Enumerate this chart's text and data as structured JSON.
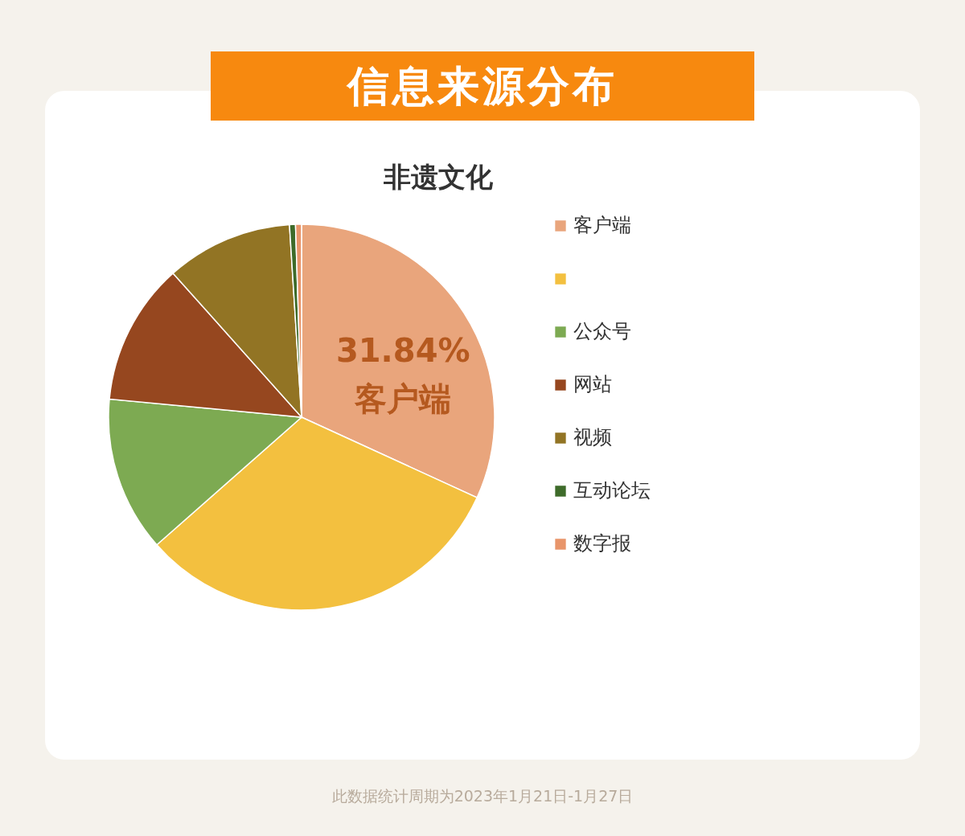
{
  "chart_data": {
    "type": "pie",
    "title": "信息来源分布",
    "subtitle": "非遗文化",
    "categories": [
      "客户端",
      null,
      "公众号",
      "网站",
      "视频",
      "互动论坛",
      "数字报"
    ],
    "values": [
      31.84,
      31.66,
      13.0,
      11.9,
      10.6,
      0.5,
      0.5
    ],
    "colors": [
      "#e9a57c",
      "#f3c03f",
      "#7daa52",
      "#96471f",
      "#927424",
      "#3e6b2a",
      "#e8956a"
    ],
    "value_labels": [
      "31.84%",
      null,
      null,
      null,
      null,
      null,
      null
    ],
    "legend": "right",
    "annotations": [
      "此数据统计周期为2023年1月21日-1月27日"
    ]
  }
}
